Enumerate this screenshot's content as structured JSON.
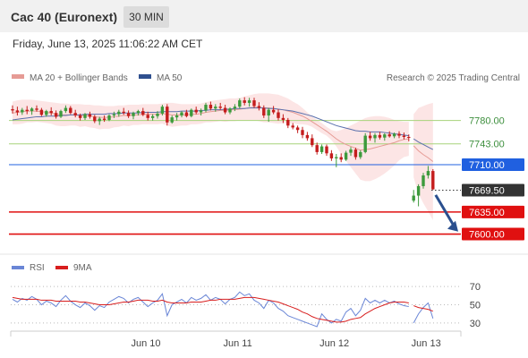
{
  "header": {
    "instrument": "Cac 40 (Euronext)",
    "interval": "30 MIN"
  },
  "timestamp": "Friday, June 13, 2025 11:06:22 AM CET",
  "legend": {
    "bollinger": "MA 20 + Bollinger Bands",
    "ma50": "MA 50",
    "credit": "Research © 2025 Trading Central"
  },
  "rsi_legend": {
    "rsi": "RSI",
    "ma9": "9MA"
  },
  "colors": {
    "bull": "#3c9a3c",
    "bear": "#c41d1d",
    "ma20": "#e69b95",
    "ma50": "#5a70ad",
    "bands": "#fbe0e0",
    "support": "#e01010",
    "pivot": "#2060e0",
    "resistance": "#a7d37a",
    "last": "#333333",
    "arrow": "#2a4f8e"
  },
  "chart_data": [
    {
      "type": "candlestick",
      "title": "Cac 40 (Euronext)",
      "x_ticks": [
        "Jun 10",
        "Jun 11",
        "Jun 12",
        "Jun 13"
      ],
      "ylim": [
        7588,
        7815
      ],
      "levels": [
        {
          "label": "7780.00",
          "value": 7780,
          "kind": "resistance"
        },
        {
          "label": "7743.00",
          "value": 7743,
          "kind": "resistance"
        },
        {
          "label": "7710.00",
          "value": 7710,
          "kind": "pivot"
        },
        {
          "label": "7669.50",
          "value": 7669.5,
          "kind": "last"
        },
        {
          "label": "7635.00",
          "value": 7635,
          "kind": "support"
        },
        {
          "label": "7600.00",
          "value": 7600,
          "kind": "support"
        }
      ],
      "forecast": {
        "direction": "down",
        "from": 7662,
        "to": 7604
      },
      "ohlc": [
        [
          7798,
          7804,
          7791,
          7796
        ],
        [
          7796,
          7802,
          7788,
          7793
        ],
        [
          7793,
          7800,
          7789,
          7797
        ],
        [
          7797,
          7803,
          7790,
          7795
        ],
        [
          7795,
          7801,
          7789,
          7799
        ],
        [
          7799,
          7804,
          7794,
          7797
        ],
        [
          7797,
          7800,
          7787,
          7789
        ],
        [
          7789,
          7797,
          7786,
          7795
        ],
        [
          7795,
          7801,
          7788,
          7792
        ],
        [
          7792,
          7796,
          7783,
          7786
        ],
        [
          7786,
          7797,
          7784,
          7795
        ],
        [
          7795,
          7804,
          7792,
          7800
        ],
        [
          7800,
          7803,
          7790,
          7792
        ],
        [
          7792,
          7797,
          7785,
          7788
        ],
        [
          7788,
          7791,
          7780,
          7784
        ],
        [
          7784,
          7792,
          7781,
          7790
        ],
        [
          7790,
          7794,
          7783,
          7786
        ],
        [
          7786,
          7789,
          7776,
          7779
        ],
        [
          7779,
          7786,
          7773,
          7783
        ],
        [
          7783,
          7788,
          7778,
          7781
        ],
        [
          7781,
          7790,
          7779,
          7788
        ],
        [
          7788,
          7794,
          7784,
          7790
        ],
        [
          7790,
          7797,
          7786,
          7794
        ],
        [
          7794,
          7800,
          7789,
          7792
        ],
        [
          7792,
          7796,
          7784,
          7787
        ],
        [
          7787,
          7794,
          7782,
          7792
        ],
        [
          7792,
          7797,
          7788,
          7795
        ],
        [
          7795,
          7800,
          7787,
          7789
        ],
        [
          7789,
          7794,
          7780,
          7784
        ],
        [
          7784,
          7790,
          7780,
          7787
        ],
        [
          7787,
          7795,
          7783,
          7791
        ],
        [
          7791,
          7805,
          7788,
          7802
        ],
        [
          7802,
          7806,
          7772,
          7777
        ],
        [
          7777,
          7788,
          7775,
          7785
        ],
        [
          7785,
          7792,
          7780,
          7788
        ],
        [
          7788,
          7795,
          7785,
          7793
        ],
        [
          7793,
          7797,
          7785,
          7787
        ],
        [
          7787,
          7799,
          7785,
          7797
        ],
        [
          7797,
          7802,
          7790,
          7793
        ],
        [
          7793,
          7799,
          7788,
          7796
        ],
        [
          7796,
          7808,
          7793,
          7805
        ],
        [
          7805,
          7810,
          7796,
          7799
        ],
        [
          7799,
          7806,
          7794,
          7802
        ],
        [
          7802,
          7808,
          7797,
          7800
        ],
        [
          7800,
          7805,
          7790,
          7793
        ],
        [
          7793,
          7801,
          7790,
          7799
        ],
        [
          7799,
          7806,
          7795,
          7802
        ],
        [
          7802,
          7815,
          7799,
          7812
        ],
        [
          7812,
          7817,
          7804,
          7808
        ],
        [
          7808,
          7816,
          7802,
          7812
        ],
        [
          7812,
          7816,
          7800,
          7803
        ],
        [
          7803,
          7809,
          7796,
          7800
        ],
        [
          7800,
          7804,
          7784,
          7788
        ],
        [
          7788,
          7800,
          7778,
          7797
        ],
        [
          7797,
          7803,
          7790,
          7793
        ],
        [
          7793,
          7798,
          7780,
          7784
        ],
        [
          7784,
          7790,
          7776,
          7781
        ],
        [
          7781,
          7784,
          7768,
          7772
        ],
        [
          7772,
          7776,
          7766,
          7769
        ],
        [
          7769,
          7772,
          7760,
          7765
        ],
        [
          7765,
          7770,
          7752,
          7757
        ],
        [
          7757,
          7762,
          7748,
          7752
        ],
        [
          7752,
          7758,
          7738,
          7741
        ],
        [
          7741,
          7745,
          7726,
          7730
        ],
        [
          7730,
          7742,
          7727,
          7739
        ],
        [
          7739,
          7742,
          7724,
          7728
        ],
        [
          7728,
          7733,
          7716,
          7720
        ],
        [
          7720,
          7727,
          7706,
          7722
        ],
        [
          7722,
          7728,
          7714,
          7718
        ],
        [
          7718,
          7732,
          7716,
          7729
        ],
        [
          7729,
          7738,
          7724,
          7734
        ],
        [
          7734,
          7737,
          7718,
          7722
        ],
        [
          7722,
          7733,
          7719,
          7730
        ],
        [
          7730,
          7760,
          7728,
          7756
        ],
        [
          7756,
          7762,
          7748,
          7752
        ],
        [
          7752,
          7760,
          7745,
          7757
        ],
        [
          7757,
          7762,
          7750,
          7753
        ],
        [
          7753,
          7760,
          7748,
          7758
        ],
        [
          7758,
          7763,
          7753,
          7755
        ],
        [
          7755,
          7761,
          7752,
          7759
        ],
        [
          7759,
          7763,
          7752,
          7756
        ],
        [
          7756,
          7761,
          7750,
          7754
        ],
        [
          7754,
          7758,
          7747,
          7753
        ],
        [
          7653,
          7670,
          7650,
          7661
        ],
        [
          7661,
          7679,
          7644,
          7676
        ],
        [
          7676,
          7697,
          7672,
          7693
        ],
        [
          7693,
          7708,
          7688,
          7700
        ],
        [
          7700,
          7703,
          7670,
          7671
        ]
      ],
      "ma20": [
        7792,
        7793,
        7794,
        7795,
        7795,
        7795,
        7794,
        7793,
        7792,
        7790,
        7789,
        7789,
        7789,
        7789,
        7788,
        7788,
        7787,
        7786,
        7785,
        7785,
        7785,
        7786,
        7787,
        7788,
        7788,
        7789,
        7789,
        7790,
        7790,
        7790,
        7790,
        7791,
        7790,
        7789,
        7789,
        7789,
        7789,
        7790,
        7790,
        7791,
        7793,
        7794,
        7795,
        7796,
        7796,
        7797,
        7797,
        7798,
        7799,
        7800,
        7801,
        7801,
        7800,
        7800,
        7799,
        7798,
        7797,
        7795,
        7793,
        7790,
        7787,
        7783,
        7778,
        7773,
        7768,
        7763,
        7757,
        7751,
        7746,
        7742,
        7739,
        7736,
        7733,
        7734,
        7735,
        7737,
        7739,
        7741,
        7743,
        7745,
        7748,
        7750,
        7751,
        7740,
        7732,
        7726,
        7721,
        7715
      ],
      "bands_upper": [
        7810,
        7812,
        7813,
        7813,
        7813,
        7812,
        7811,
        7810,
        7809,
        7808,
        7807,
        7807,
        7806,
        7806,
        7806,
        7805,
        7805,
        7804,
        7804,
        7803,
        7803,
        7803,
        7804,
        7804,
        7805,
        7805,
        7805,
        7806,
        7806,
        7806,
        7806,
        7807,
        7808,
        7808,
        7807,
        7806,
        7806,
        7806,
        7806,
        7807,
        7809,
        7811,
        7812,
        7813,
        7814,
        7815,
        7815,
        7816,
        7818,
        7820,
        7822,
        7823,
        7823,
        7823,
        7822,
        7821,
        7818,
        7815,
        7810,
        7806,
        7800,
        7793,
        7786,
        7781,
        7776,
        7770,
        7765,
        7763,
        7765,
        7768,
        7772,
        7776,
        7780,
        7784,
        7786,
        7787,
        7787,
        7786,
        7784,
        7781,
        7779,
        7778,
        7778,
        7790,
        7800,
        7803,
        7806,
        7808
      ],
      "bands_lower": [
        7774,
        7774,
        7775,
        7777,
        7777,
        7778,
        7777,
        7776,
        7775,
        7772,
        7771,
        7771,
        7772,
        7772,
        7770,
        7771,
        7769,
        7768,
        7766,
        7767,
        7767,
        7769,
        7770,
        7772,
        7771,
        7773,
        7773,
        7774,
        7774,
        7774,
        7774,
        7775,
        7772,
        7770,
        7771,
        7772,
        7772,
        7774,
        7774,
        7775,
        7777,
        7777,
        7778,
        7779,
        7778,
        7779,
        7779,
        7780,
        7780,
        7780,
        7780,
        7779,
        7777,
        7777,
        7776,
        7775,
        7776,
        7775,
        7776,
        7774,
        7774,
        7773,
        7770,
        7765,
        7760,
        7756,
        7749,
        7739,
        7727,
        7716,
        7706,
        7696,
        7686,
        7684,
        7684,
        7687,
        7691,
        7696,
        7702,
        7709,
        7717,
        7722,
        7724,
        7690,
        7664,
        7649,
        7636,
        7622
      ],
      "ma50": [
        7781,
        7782,
        7783,
        7784,
        7785,
        7786,
        7786,
        7787,
        7787,
        7787,
        7788,
        7788,
        7789,
        7789,
        7789,
        7790,
        7790,
        7790,
        7790,
        7790,
        7791,
        7791,
        7791,
        7792,
        7792,
        7792,
        7792,
        7793,
        7793,
        7793,
        7793,
        7794,
        7794,
        7794,
        7794,
        7795,
        7795,
        7795,
        7795,
        7796,
        7796,
        7797,
        7797,
        7797,
        7798,
        7798,
        7799,
        7799,
        7799,
        7800,
        7800,
        7800,
        7800,
        7799,
        7799,
        7798,
        7797,
        7796,
        7795,
        7793,
        7791,
        7789,
        7787,
        7784,
        7781,
        7778,
        7775,
        7772,
        7770,
        7768,
        7766,
        7764,
        7763,
        7763,
        7762,
        7762,
        7762,
        7761,
        7760,
        7759,
        7758,
        7757,
        7756,
        7751,
        7746,
        7742,
        7738,
        7734
      ]
    },
    {
      "type": "line",
      "title": "RSI",
      "ylim": [
        25,
        78
      ],
      "y_ticks": [
        70,
        50,
        30
      ],
      "series": [
        {
          "name": "RSI",
          "values": [
            56,
            53,
            57,
            55,
            59,
            56,
            50,
            54,
            52,
            48,
            55,
            60,
            54,
            50,
            47,
            52,
            49,
            44,
            49,
            47,
            53,
            56,
            59,
            57,
            52,
            56,
            58,
            53,
            48,
            52,
            55,
            62,
            38,
            50,
            53,
            56,
            52,
            58,
            55,
            57,
            61,
            55,
            58,
            56,
            51,
            56,
            58,
            64,
            60,
            62,
            55,
            52,
            46,
            55,
            52,
            46,
            43,
            38,
            36,
            34,
            32,
            30,
            28,
            26,
            40,
            34,
            30,
            34,
            32,
            42,
            46,
            38,
            44,
            57,
            52,
            55,
            52,
            55,
            52,
            54,
            51,
            49,
            48,
            30,
            40,
            47,
            52,
            35
          ]
        },
        {
          "name": "9MA",
          "values": [
            58,
            57,
            56,
            56,
            56,
            56,
            55,
            55,
            55,
            54,
            54,
            54,
            54,
            54,
            53,
            53,
            52,
            51,
            50,
            50,
            50,
            51,
            52,
            53,
            53,
            54,
            55,
            55,
            55,
            54,
            54,
            55,
            53,
            52,
            52,
            52,
            52,
            53,
            53,
            53,
            54,
            55,
            55,
            56,
            56,
            56,
            56,
            57,
            58,
            58,
            58,
            57,
            56,
            55,
            54,
            53,
            51,
            49,
            47,
            45,
            42,
            40,
            37,
            35,
            34,
            33,
            32,
            31,
            31,
            32,
            34,
            35,
            36,
            40,
            43,
            46,
            48,
            50,
            52,
            53,
            53,
            53,
            52,
            49,
            47,
            46,
            45,
            43
          ]
        }
      ]
    }
  ]
}
